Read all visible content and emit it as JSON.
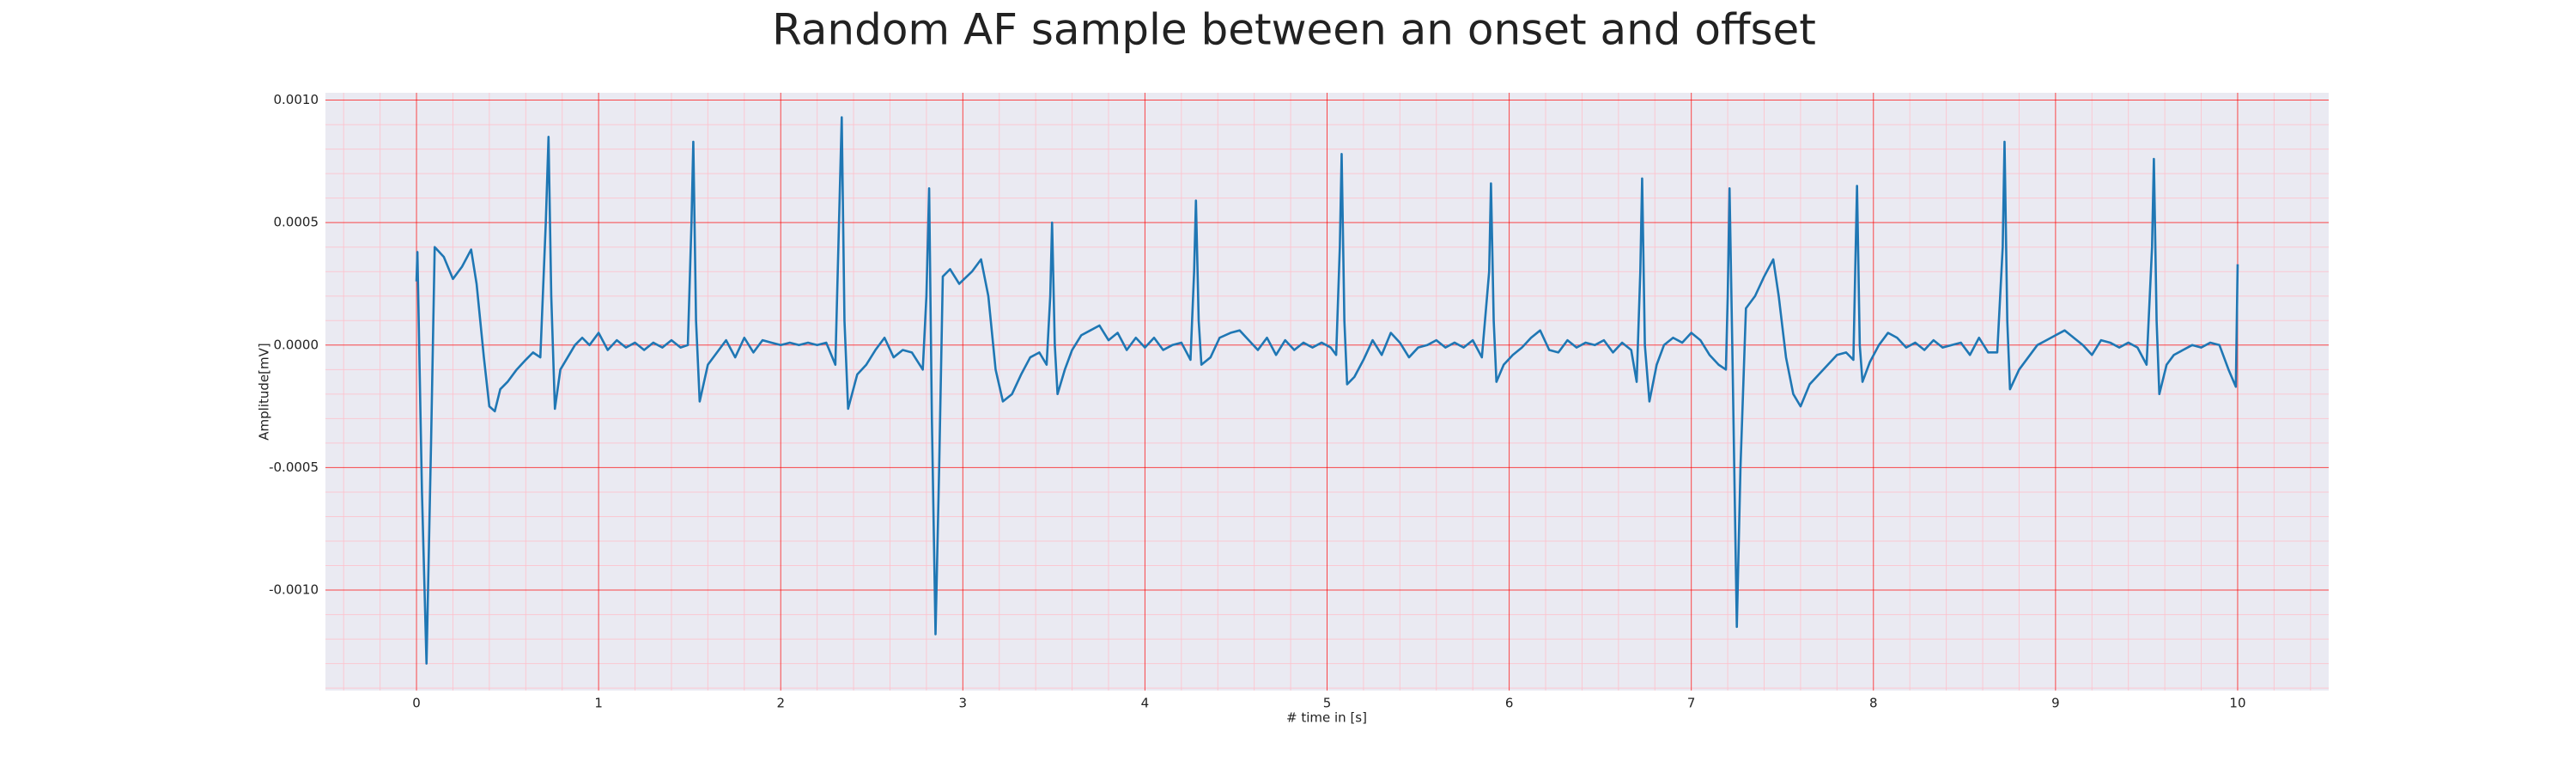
{
  "chart_data": {
    "type": "line",
    "title": "Random AF sample between an onset and offset",
    "xlabel": "# time in [s]",
    "ylabel": "Amplitude[mV]",
    "color": "#1f77b4",
    "grid": true,
    "minor_grid": true,
    "xlim": [
      -0.5,
      10.5
    ],
    "ylim": [
      -0.00141,
      0.00103
    ],
    "xticks": [
      0,
      1,
      2,
      3,
      4,
      5,
      6,
      7,
      8,
      9,
      10
    ],
    "yticks": [
      {
        "value": -0.001,
        "label": "-0.0010"
      },
      {
        "value": -0.0005,
        "label": "-0.0005"
      },
      {
        "value": 0,
        "label": "0.0000"
      },
      {
        "value": 0.0005,
        "label": "0.0005"
      },
      {
        "value": 0.001,
        "label": "0.0010"
      }
    ],
    "x": [
      0,
      0.005,
      0.03,
      0.055,
      0.08,
      0.1,
      0.15,
      0.2,
      0.25,
      0.3,
      0.33,
      0.37,
      0.4,
      0.43,
      0.46,
      0.5,
      0.55,
      0.6,
      0.64,
      0.68,
      0.71,
      0.725,
      0.74,
      0.76,
      0.79,
      0.83,
      0.87,
      0.91,
      0.95,
      1.0,
      1.05,
      1.1,
      1.15,
      1.2,
      1.25,
      1.3,
      1.35,
      1.4,
      1.45,
      1.49,
      1.51,
      1.52,
      1.535,
      1.555,
      1.6,
      1.65,
      1.7,
      1.75,
      1.8,
      1.85,
      1.9,
      1.95,
      2.0,
      2.05,
      2.1,
      2.15,
      2.2,
      2.25,
      2.3,
      2.32,
      2.335,
      2.35,
      2.37,
      2.42,
      2.47,
      2.52,
      2.57,
      2.62,
      2.67,
      2.72,
      2.78,
      2.8,
      2.815,
      2.83,
      2.85,
      2.87,
      2.89,
      2.93,
      2.98,
      3.05,
      3.1,
      3.14,
      3.18,
      3.22,
      3.27,
      3.32,
      3.37,
      3.42,
      3.46,
      3.48,
      3.49,
      3.505,
      3.52,
      3.56,
      3.6,
      3.65,
      3.7,
      3.75,
      3.8,
      3.85,
      3.9,
      3.95,
      4.0,
      4.05,
      4.1,
      4.15,
      4.2,
      4.25,
      4.27,
      4.28,
      4.295,
      4.31,
      4.36,
      4.41,
      4.47,
      4.52,
      4.57,
      4.62,
      4.67,
      4.72,
      4.77,
      4.82,
      4.87,
      4.92,
      4.97,
      5.02,
      5.05,
      5.07,
      5.08,
      5.095,
      5.11,
      5.15,
      5.2,
      5.25,
      5.3,
      5.35,
      5.4,
      5.45,
      5.5,
      5.55,
      5.6,
      5.65,
      5.7,
      5.75,
      5.8,
      5.85,
      5.89,
      5.9,
      5.915,
      5.93,
      5.97,
      6.02,
      6.07,
      6.12,
      6.17,
      6.22,
      6.27,
      6.32,
      6.37,
      6.42,
      6.47,
      6.52,
      6.57,
      6.62,
      6.67,
      6.7,
      6.72,
      6.73,
      6.745,
      6.77,
      6.81,
      6.85,
      6.9,
      6.95,
      7.0,
      7.05,
      7.1,
      7.15,
      7.19,
      7.2,
      7.21,
      7.225,
      7.25,
      7.27,
      7.3,
      7.35,
      7.4,
      7.45,
      7.48,
      7.52,
      7.56,
      7.6,
      7.65,
      7.7,
      7.75,
      7.8,
      7.85,
      7.89,
      7.9,
      7.91,
      7.925,
      7.94,
      7.98,
      8.03,
      8.08,
      8.13,
      8.18,
      8.23,
      8.28,
      8.33,
      8.38,
      8.43,
      8.48,
      8.53,
      8.58,
      8.63,
      8.68,
      8.71,
      8.72,
      8.735,
      8.75,
      8.8,
      8.85,
      8.9,
      8.95,
      9.0,
      9.05,
      9.1,
      9.15,
      9.2,
      9.25,
      9.3,
      9.35,
      9.4,
      9.45,
      9.5,
      9.53,
      9.54,
      9.555,
      9.57,
      9.61,
      9.65,
      9.7,
      9.75,
      9.8,
      9.85,
      9.9,
      9.95,
      9.99,
      10.0
    ],
    "values": [
      0.00026,
      0.00038,
      -0.0006,
      -0.0013,
      -0.0004,
      0.0004,
      0.00036,
      0.00027,
      0.00032,
      0.00039,
      0.00025,
      -5e-05,
      -0.00025,
      -0.00027,
      -0.00018,
      -0.00015,
      -0.0001,
      -6e-05,
      -3e-05,
      -5e-05,
      0.0005,
      0.00085,
      0.0002,
      -0.00026,
      -0.0001,
      -5e-05,
      0,
      3e-05,
      0,
      5e-05,
      -2e-05,
      2e-05,
      -1e-05,
      1e-05,
      -2e-05,
      1e-05,
      -1e-05,
      2e-05,
      -1e-05,
      0,
      0.0005,
      0.00083,
      0.0001,
      -0.00023,
      -8e-05,
      -3e-05,
      2e-05,
      -5e-05,
      3e-05,
      -3e-05,
      2e-05,
      1e-05,
      0,
      1e-05,
      0,
      1e-05,
      0,
      1e-05,
      -8e-05,
      0.0005,
      0.00093,
      0.0001,
      -0.00026,
      -0.00012,
      -8e-05,
      -2e-05,
      3e-05,
      -5e-05,
      -2e-05,
      -3e-05,
      -0.0001,
      0.0002,
      0.00064,
      -0.0003,
      -0.00118,
      -0.0005,
      0.00028,
      0.00031,
      0.00025,
      0.0003,
      0.00035,
      0.0002,
      -0.0001,
      -0.00023,
      -0.0002,
      -0.00012,
      -5e-05,
      -3e-05,
      -8e-05,
      0.0002,
      0.0005,
      0,
      -0.0002,
      -0.0001,
      -2e-05,
      4e-05,
      6e-05,
      8e-05,
      2e-05,
      5e-05,
      -2e-05,
      3e-05,
      -1e-05,
      3e-05,
      -2e-05,
      0,
      1e-05,
      -6e-05,
      0.0003,
      0.00059,
      0.0001,
      -8e-05,
      -5e-05,
      3e-05,
      5e-05,
      6e-05,
      2e-05,
      -2e-05,
      3e-05,
      -4e-05,
      2e-05,
      -2e-05,
      1e-05,
      -1e-05,
      1e-05,
      -1e-05,
      -4e-05,
      0.0004,
      0.00078,
      0.0001,
      -0.00016,
      -0.00013,
      -6e-05,
      2e-05,
      -4e-05,
      5e-05,
      1e-05,
      -5e-05,
      -1e-05,
      0,
      2e-05,
      -1e-05,
      1e-05,
      -1e-05,
      2e-05,
      -5e-05,
      0.0003,
      0.00066,
      0.0001,
      -0.00015,
      -8e-05,
      -4e-05,
      -1e-05,
      3e-05,
      6e-05,
      -2e-05,
      -3e-05,
      2e-05,
      -1e-05,
      1e-05,
      0,
      2e-05,
      -3e-05,
      1e-05,
      -2e-05,
      -0.00015,
      0.0003,
      0.00068,
      0,
      -0.00023,
      -8e-05,
      0,
      3e-05,
      1e-05,
      5e-05,
      2e-05,
      -4e-05,
      -8e-05,
      -0.0001,
      0.0002,
      0.00064,
      0,
      -0.00115,
      -0.0005,
      0.00015,
      0.0002,
      0.00028,
      0.00035,
      0.0002,
      -5e-05,
      -0.0002,
      -0.00025,
      -0.00016,
      -0.00012,
      -8e-05,
      -4e-05,
      -3e-05,
      -6e-05,
      0.0003,
      0.00065,
      0,
      -0.00015,
      -7e-05,
      0,
      5e-05,
      3e-05,
      -1e-05,
      1e-05,
      -2e-05,
      2e-05,
      -1e-05,
      0,
      1e-05,
      -4e-05,
      3e-05,
      -3e-05,
      -3e-05,
      0.0004,
      0.00083,
      0.0001,
      -0.00018,
      -0.0001,
      -5e-05,
      0,
      2e-05,
      4e-05,
      6e-05,
      3e-05,
      0,
      -4e-05,
      2e-05,
      1e-05,
      -1e-05,
      1e-05,
      -1e-05,
      -8e-05,
      0.0004,
      0.00076,
      0.0001,
      -0.0002,
      -8e-05,
      -4e-05,
      -2e-05,
      0,
      -1e-05,
      1e-05,
      0,
      -0.0001,
      -0.00017,
      0.00033
    ]
  }
}
